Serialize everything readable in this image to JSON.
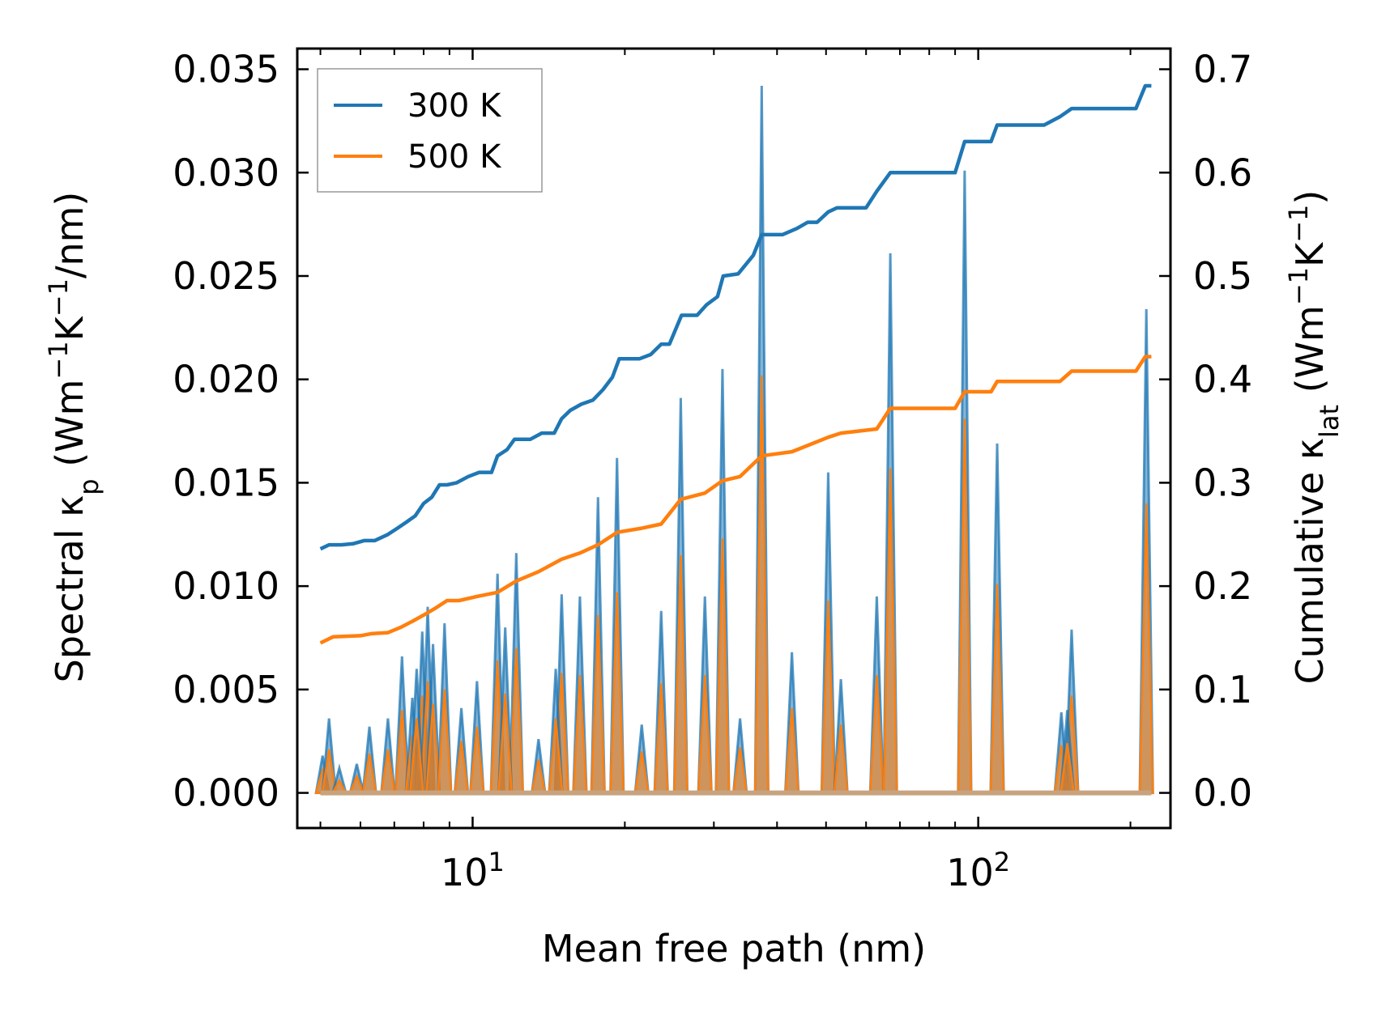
{
  "chart_data": {
    "type": "line",
    "title": "",
    "xlabel": "Mean free path (nm)",
    "ylabel_left": {
      "main": "Spectral κ",
      "sub": "p",
      "unit_prefix": " (Wm",
      "sup1": "−1",
      "mid": "K",
      "sup2": "−1",
      "unit_suffix": "/nm)"
    },
    "ylabel_right": {
      "main": "Cumulative κ",
      "sub": "lat",
      "unit_prefix": " (Wm",
      "sup1": "−1",
      "mid": "K",
      "sup2": "−1",
      "unit_suffix": ")"
    },
    "x_scale": "log",
    "xlim": [
      4.5,
      240
    ],
    "x_ticks": [
      {
        "value": 10,
        "base": "10",
        "exp": "1"
      },
      {
        "value": 100,
        "base": "10",
        "exp": "2"
      }
    ],
    "ylim_left": [
      -0.0017,
      0.036
    ],
    "y_ticks_left": [
      "0.000",
      "0.005",
      "0.010",
      "0.015",
      "0.020",
      "0.025",
      "0.030",
      "0.035"
    ],
    "ylim_right": [
      -0.034,
      0.72
    ],
    "y_ticks_right": [
      "0.0",
      "0.1",
      "0.2",
      "0.3",
      "0.4",
      "0.5",
      "0.6",
      "0.7"
    ],
    "legend": {
      "position": "top-left",
      "entries": [
        "300 K",
        "500 K"
      ]
    },
    "colors": {
      "s300": "#1f77b4",
      "s500": "#ff7f0e",
      "fill300": "#1f77b4",
      "fill500": "#ff7f0e",
      "fill_overlap": "#c8a37f"
    },
    "spectral_peaks": [
      {
        "x": 5.05,
        "v300": 0.0018,
        "v500": 0.0011
      },
      {
        "x": 5.2,
        "v300": 0.0036,
        "v500": 0.0021
      },
      {
        "x": 5.45,
        "v300": 0.0012,
        "v500": 0.0006
      },
      {
        "x": 5.9,
        "v300": 0.0014,
        "v500": 0.0008
      },
      {
        "x": 6.25,
        "v300": 0.0032,
        "v500": 0.0019
      },
      {
        "x": 6.8,
        "v300": 0.0036,
        "v500": 0.0021
      },
      {
        "x": 7.25,
        "v300": 0.0066,
        "v500": 0.004
      },
      {
        "x": 7.6,
        "v300": 0.0046,
        "v500": 0.0028
      },
      {
        "x": 7.95,
        "v300": 0.0078,
        "v500": 0.0047
      },
      {
        "x": 8.15,
        "v300": 0.009,
        "v500": 0.0054
      },
      {
        "x": 8.35,
        "v300": 0.0072,
        "v500": 0.0043
      },
      {
        "x": 8.8,
        "v300": 0.0082,
        "v500": 0.005
      },
      {
        "x": 9.5,
        "v300": 0.0041,
        "v500": 0.0025
      },
      {
        "x": 10.2,
        "v300": 0.0054,
        "v500": 0.0032
      },
      {
        "x": 11.2,
        "v300": 0.0106,
        "v500": 0.0064
      },
      {
        "x": 12.2,
        "v300": 0.0116,
        "v500": 0.007
      },
      {
        "x": 13.5,
        "v300": 0.0026,
        "v500": 0.0016
      },
      {
        "x": 15.0,
        "v300": 0.0096,
        "v500": 0.0058
      },
      {
        "x": 16.3,
        "v300": 0.0095,
        "v500": 0.0057
      },
      {
        "x": 17.7,
        "v300": 0.0143,
        "v500": 0.0086
      },
      {
        "x": 19.3,
        "v300": 0.0162,
        "v500": 0.0097
      },
      {
        "x": 21.6,
        "v300": 0.0033,
        "v500": 0.002
      },
      {
        "x": 23.6,
        "v300": 0.0088,
        "v500": 0.0053
      },
      {
        "x": 25.8,
        "v300": 0.0191,
        "v500": 0.0115
      },
      {
        "x": 28.8,
        "v300": 0.0095,
        "v500": 0.0057
      },
      {
        "x": 31.2,
        "v300": 0.0205,
        "v500": 0.0123
      },
      {
        "x": 33.8,
        "v300": 0.0036,
        "v500": 0.0022
      },
      {
        "x": 37.3,
        "v300": 0.0342,
        "v500": 0.0202
      },
      {
        "x": 42.8,
        "v300": 0.0068,
        "v500": 0.0041
      },
      {
        "x": 50.5,
        "v300": 0.0155,
        "v500": 0.0093
      },
      {
        "x": 53.5,
        "v300": 0.0055,
        "v500": 0.0033
      },
      {
        "x": 63.0,
        "v300": 0.0095,
        "v500": 0.0057
      },
      {
        "x": 67.0,
        "v300": 0.0261,
        "v500": 0.0157
      },
      {
        "x": 94.0,
        "v300": 0.0301,
        "v500": 0.0181
      },
      {
        "x": 109.0,
        "v300": 0.0169,
        "v500": 0.0101
      },
      {
        "x": 153.0,
        "v300": 0.0079,
        "v500": 0.0047
      },
      {
        "x": 215.0,
        "v300": 0.0234,
        "v500": 0.014
      }
    ],
    "spectral_shoulders": [
      {
        "x": 146.0,
        "v300": 0.0039,
        "v500": 0.0023
      },
      {
        "x": 150.0,
        "v300": 0.004,
        "v500": 0.0024
      },
      {
        "x": 11.6,
        "v300": 0.008,
        "v500": 0.0048
      },
      {
        "x": 14.6,
        "v300": 0.006,
        "v500": 0.0036
      },
      {
        "x": 7.75,
        "v300": 0.006,
        "v500": 0.0036
      }
    ],
    "cumulative": [
      {
        "name": "300 K",
        "points": [
          [
            5.0,
            0.236
          ],
          [
            5.2,
            0.24
          ],
          [
            5.5,
            0.24
          ],
          [
            5.8,
            0.241
          ],
          [
            6.1,
            0.244
          ],
          [
            6.4,
            0.244
          ],
          [
            6.8,
            0.25
          ],
          [
            7.1,
            0.256
          ],
          [
            7.4,
            0.262
          ],
          [
            7.7,
            0.268
          ],
          [
            8.0,
            0.28
          ],
          [
            8.3,
            0.286
          ],
          [
            8.6,
            0.298
          ],
          [
            8.9,
            0.298
          ],
          [
            9.3,
            0.3
          ],
          [
            9.8,
            0.306
          ],
          [
            10.3,
            0.31
          ],
          [
            10.9,
            0.31
          ],
          [
            11.2,
            0.326
          ],
          [
            11.7,
            0.332
          ],
          [
            12.1,
            0.342
          ],
          [
            13.0,
            0.342
          ],
          [
            13.7,
            0.348
          ],
          [
            14.5,
            0.348
          ],
          [
            15.0,
            0.362
          ],
          [
            15.6,
            0.37
          ],
          [
            16.4,
            0.376
          ],
          [
            17.3,
            0.38
          ],
          [
            18.1,
            0.39
          ],
          [
            18.9,
            0.402
          ],
          [
            19.5,
            0.42
          ],
          [
            21.4,
            0.42
          ],
          [
            22.5,
            0.424
          ],
          [
            23.6,
            0.434
          ],
          [
            24.5,
            0.434
          ],
          [
            25.9,
            0.462
          ],
          [
            27.8,
            0.462
          ],
          [
            29.0,
            0.472
          ],
          [
            30.5,
            0.48
          ],
          [
            31.3,
            0.5
          ],
          [
            33.5,
            0.502
          ],
          [
            35.9,
            0.52
          ],
          [
            37.3,
            0.54
          ],
          [
            41.0,
            0.54
          ],
          [
            43.8,
            0.546
          ],
          [
            46.0,
            0.552
          ],
          [
            48.0,
            0.552
          ],
          [
            50.5,
            0.562
          ],
          [
            52.6,
            0.566
          ],
          [
            57.0,
            0.566
          ],
          [
            60.0,
            0.566
          ],
          [
            63.0,
            0.582
          ],
          [
            67.0,
            0.6
          ],
          [
            90.0,
            0.6
          ],
          [
            94.0,
            0.63
          ],
          [
            106.0,
            0.63
          ],
          [
            109.0,
            0.646
          ],
          [
            135.0,
            0.646
          ],
          [
            145.0,
            0.654
          ],
          [
            153.0,
            0.662
          ],
          [
            205.0,
            0.662
          ],
          [
            214.0,
            0.684
          ],
          [
            220.0,
            0.684
          ]
        ]
      },
      {
        "name": "500 K",
        "points": [
          [
            5.0,
            0.145
          ],
          [
            5.3,
            0.151
          ],
          [
            6.0,
            0.152
          ],
          [
            6.3,
            0.154
          ],
          [
            6.8,
            0.155
          ],
          [
            7.2,
            0.16
          ],
          [
            7.6,
            0.166
          ],
          [
            8.0,
            0.172
          ],
          [
            8.4,
            0.178
          ],
          [
            8.9,
            0.186
          ],
          [
            9.4,
            0.186
          ],
          [
            10.2,
            0.19
          ],
          [
            11.2,
            0.194
          ],
          [
            12.2,
            0.205
          ],
          [
            13.5,
            0.214
          ],
          [
            15.0,
            0.226
          ],
          [
            16.3,
            0.232
          ],
          [
            17.7,
            0.24
          ],
          [
            19.3,
            0.252
          ],
          [
            21.6,
            0.256
          ],
          [
            23.6,
            0.26
          ],
          [
            25.8,
            0.284
          ],
          [
            28.8,
            0.29
          ],
          [
            31.2,
            0.302
          ],
          [
            33.8,
            0.306
          ],
          [
            37.3,
            0.326
          ],
          [
            42.8,
            0.33
          ],
          [
            50.5,
            0.344
          ],
          [
            53.5,
            0.348
          ],
          [
            63.0,
            0.352
          ],
          [
            67.0,
            0.372
          ],
          [
            90.0,
            0.372
          ],
          [
            94.0,
            0.388
          ],
          [
            106.0,
            0.388
          ],
          [
            109.0,
            0.398
          ],
          [
            145.0,
            0.398
          ],
          [
            153.0,
            0.408
          ],
          [
            205.0,
            0.408
          ],
          [
            214.0,
            0.422
          ],
          [
            220.0,
            0.422
          ]
        ]
      }
    ]
  }
}
